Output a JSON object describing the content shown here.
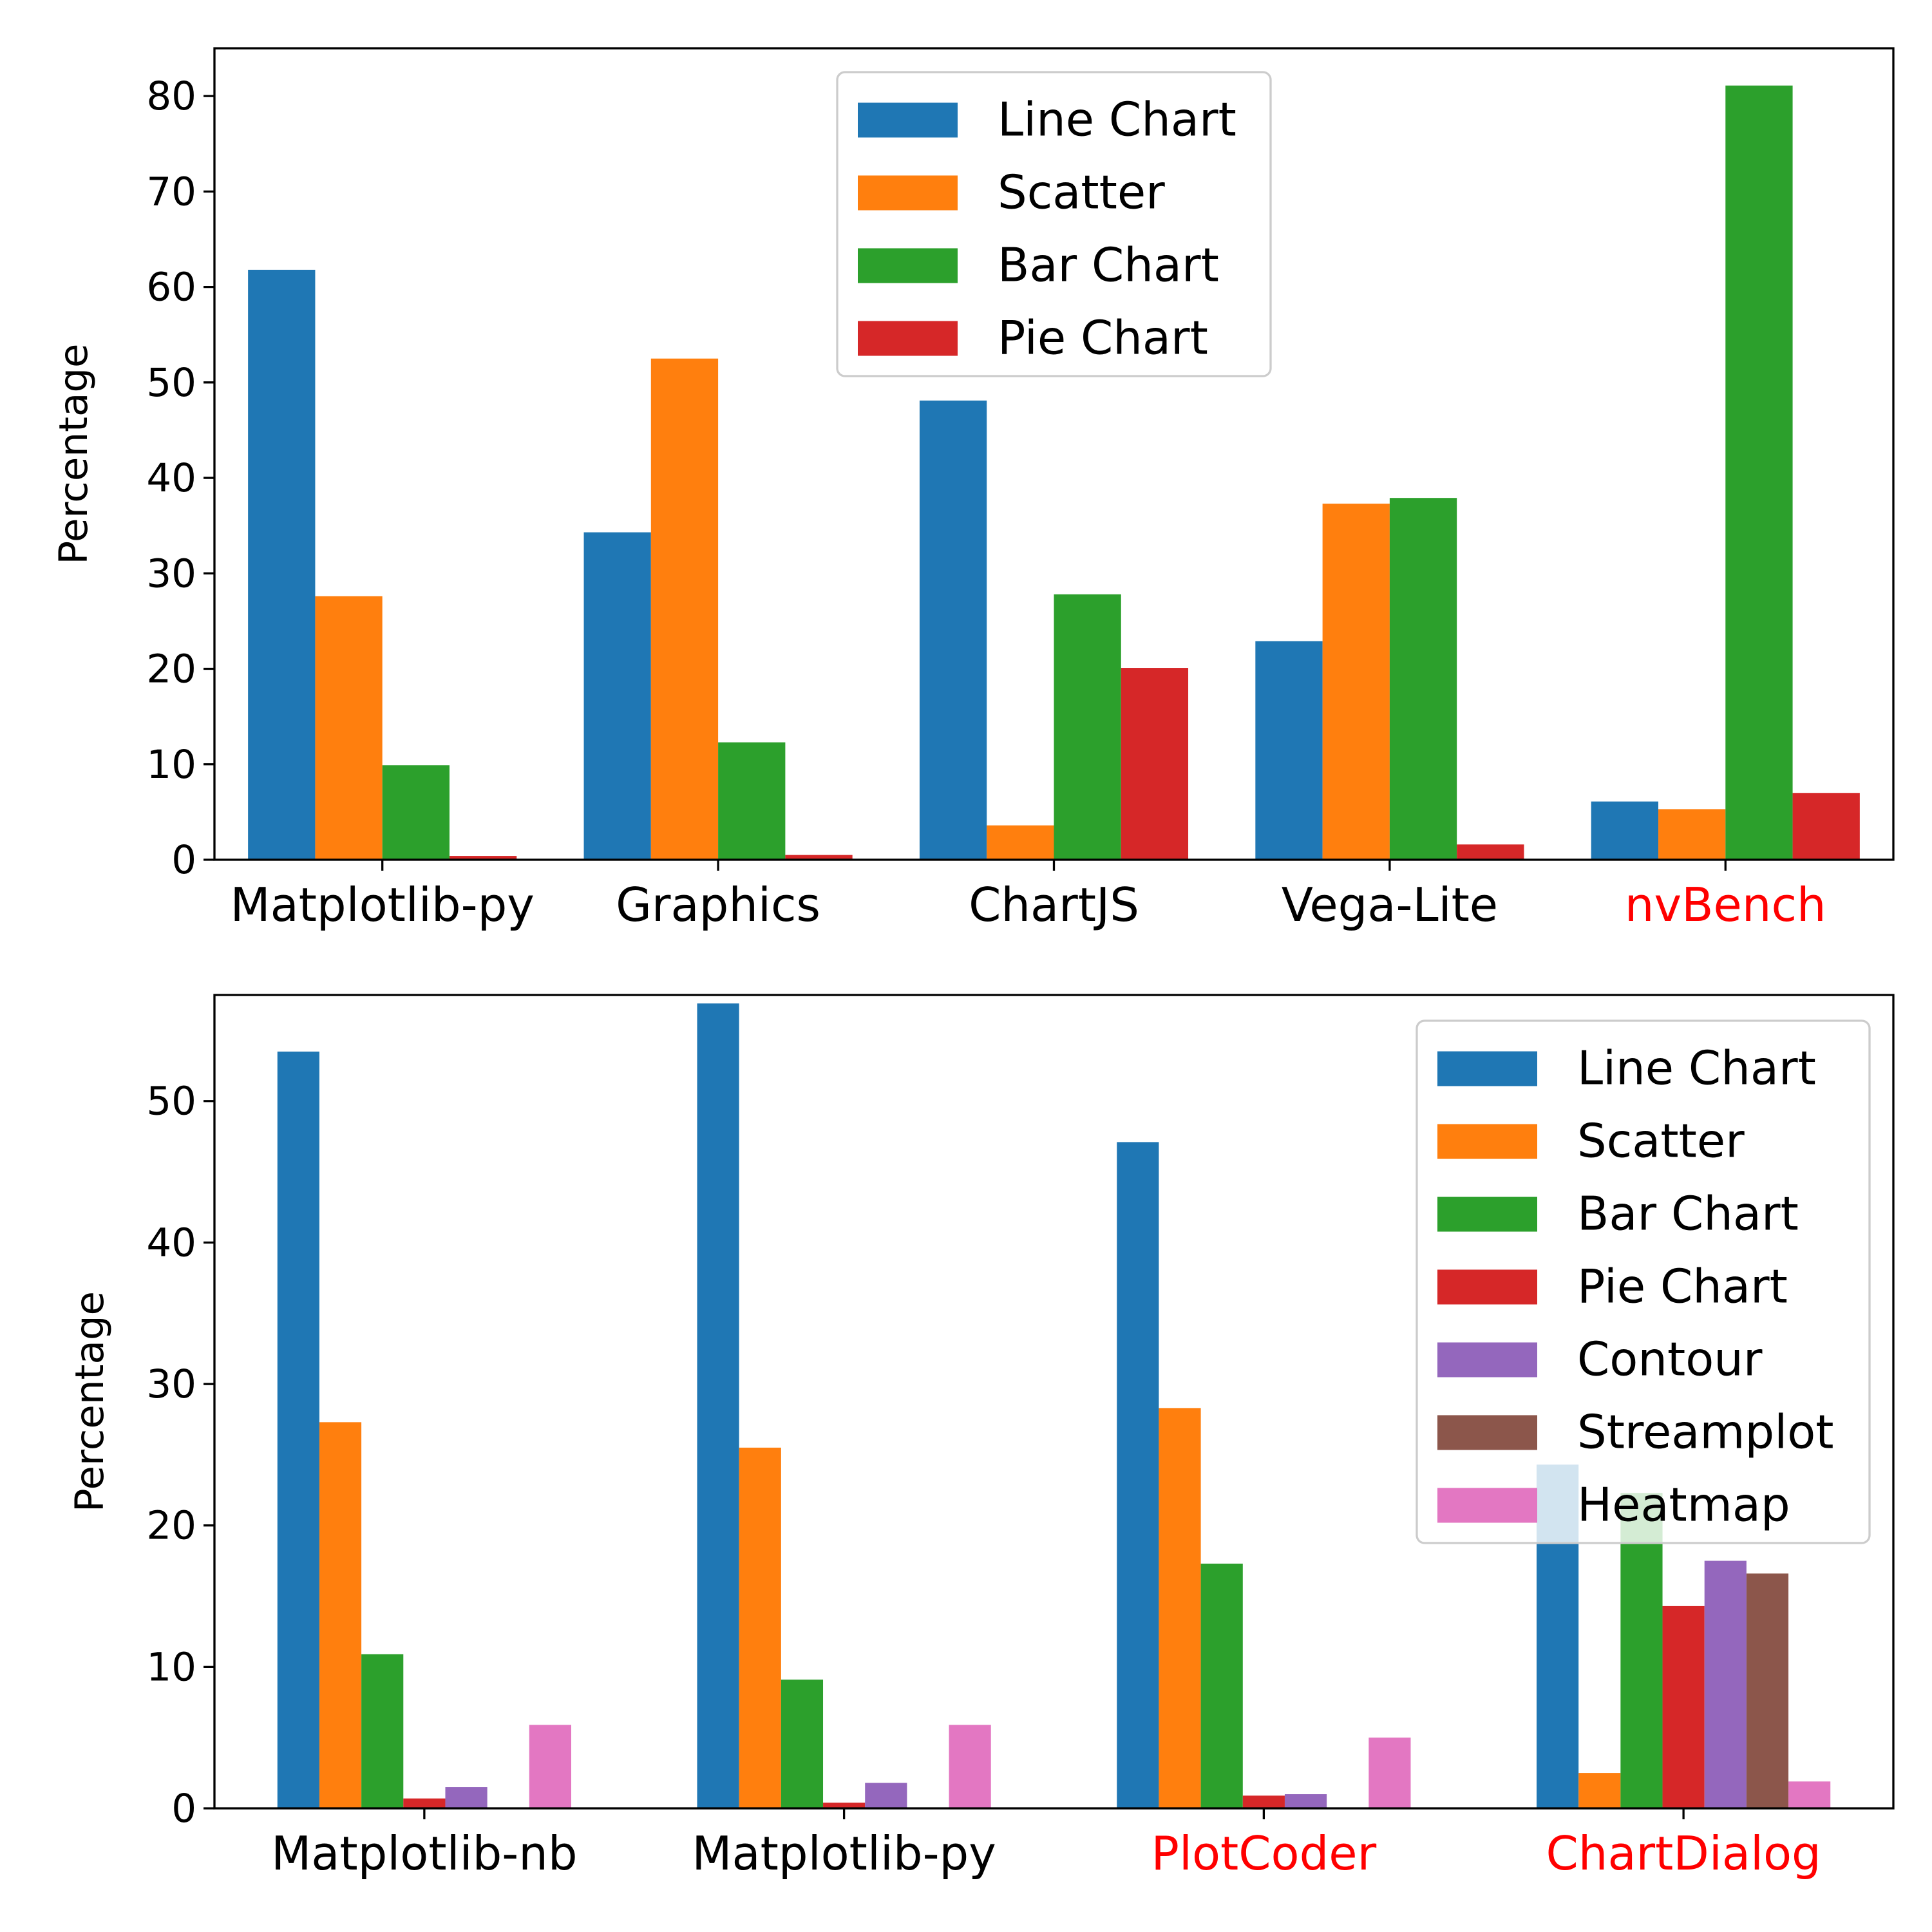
{
  "chart_data": [
    {
      "type": "bar",
      "title": "",
      "xlabel": "",
      "ylabel": "Percentage",
      "ylim": [
        0,
        85
      ],
      "yticks": [
        0,
        10,
        20,
        30,
        40,
        50,
        60,
        70,
        80
      ],
      "categories": [
        "Matplotlib-py",
        "Graphics",
        "ChartJS",
        "Vega-Lite",
        "nvBench"
      ],
      "category_colors": [
        "#000000",
        "#000000",
        "#000000",
        "#000000",
        "#ff0000"
      ],
      "legend_position": "top-center",
      "series": [
        {
          "name": "Line Chart",
          "color": "#1f77b4",
          "values": [
            61.8,
            34.3,
            48.1,
            22.9,
            6.1
          ]
        },
        {
          "name": "Scatter",
          "color": "#ff7f0e",
          "values": [
            27.6,
            52.5,
            3.6,
            37.3,
            5.3
          ]
        },
        {
          "name": "Bar Chart",
          "color": "#2ca02c",
          "values": [
            9.9,
            12.3,
            27.8,
            37.9,
            81.1
          ]
        },
        {
          "name": "Pie Chart",
          "color": "#d62728",
          "values": [
            0.4,
            0.5,
            20.1,
            1.6,
            7.0
          ]
        }
      ]
    },
    {
      "type": "bar",
      "title": "",
      "xlabel": "",
      "ylabel": "Percentage",
      "ylim": [
        0,
        57.5
      ],
      "yticks": [
        0,
        10,
        20,
        30,
        40,
        50
      ],
      "categories": [
        "Matplotlib-nb",
        "Matplotlib-py",
        "PlotCoder",
        "ChartDialog"
      ],
      "category_colors": [
        "#000000",
        "#000000",
        "#ff0000",
        "#ff0000"
      ],
      "legend_position": "top-right",
      "series": [
        {
          "name": "Line Chart",
          "color": "#1f77b4",
          "values": [
            53.5,
            56.9,
            47.1,
            24.3
          ]
        },
        {
          "name": "Scatter",
          "color": "#ff7f0e",
          "values": [
            27.3,
            25.5,
            28.3,
            2.5
          ]
        },
        {
          "name": "Bar Chart",
          "color": "#2ca02c",
          "values": [
            10.9,
            9.1,
            17.3,
            22.3
          ]
        },
        {
          "name": "Pie Chart",
          "color": "#d62728",
          "values": [
            0.7,
            0.4,
            0.9,
            14.3
          ]
        },
        {
          "name": "Contour",
          "color": "#9467bd",
          "values": [
            1.5,
            1.8,
            1.0,
            17.5
          ]
        },
        {
          "name": "Streamplot",
          "color": "#8c564b",
          "values": [
            0,
            0,
            0,
            16.6
          ]
        },
        {
          "name": "Heatmap",
          "color": "#e377c2",
          "values": [
            5.9,
            5.9,
            5.0,
            1.9
          ]
        }
      ]
    }
  ]
}
